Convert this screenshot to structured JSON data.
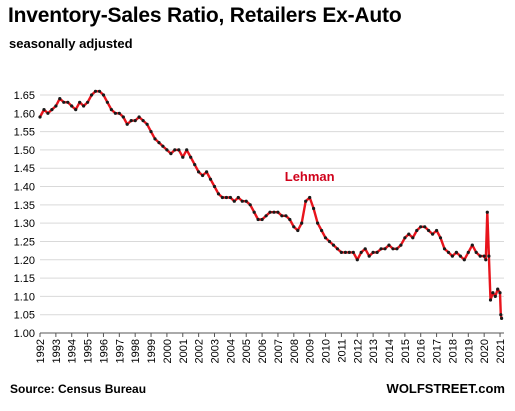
{
  "title": "Inventory-Sales  Ratio, Retailers Ex-Auto",
  "subtitle": "seasonally adjusted",
  "source": "Source: Census Bureau",
  "brand": "WOLFSTREET.com",
  "colors": {
    "line": "#e8141c",
    "marker": "#1a1a1a",
    "grid": "#d9d9d9",
    "annotation": "#d0021b"
  },
  "chart_data": {
    "type": "line",
    "title": "Inventory-Sales  Ratio, Retailers Ex-Auto",
    "subtitle": "seasonally adjusted",
    "xlabel": "",
    "ylabel": "",
    "xlim": [
      1992,
      2021.25
    ],
    "ylim": [
      1.0,
      1.68
    ],
    "grid": "horizontal",
    "y_ticks": [
      "1.00",
      "1.05",
      "1.10",
      "1.15",
      "1.20",
      "1.25",
      "1.30",
      "1.35",
      "1.40",
      "1.45",
      "1.50",
      "1.55",
      "1.60",
      "1.65"
    ],
    "x_ticks": [
      "1992",
      "1993",
      "1994",
      "1995",
      "1996",
      "1997",
      "1998",
      "1999",
      "2000",
      "2001",
      "2002",
      "2003",
      "2004",
      "2005",
      "2006",
      "2007",
      "2008",
      "2009",
      "2010",
      "2011",
      "2012",
      "2013",
      "2014",
      "2015",
      "2016",
      "2017",
      "2018",
      "2019",
      "2020",
      "2021"
    ],
    "annotations": [
      {
        "text": "Lehman",
        "x": 2009.0,
        "y": 1.415
      }
    ],
    "series": [
      {
        "name": "",
        "points": [
          [
            1992.0,
            1.59
          ],
          [
            1992.25,
            1.61
          ],
          [
            1992.5,
            1.6
          ],
          [
            1992.75,
            1.61
          ],
          [
            1993.0,
            1.62
          ],
          [
            1993.25,
            1.64
          ],
          [
            1993.5,
            1.63
          ],
          [
            1993.75,
            1.63
          ],
          [
            1994.0,
            1.62
          ],
          [
            1994.25,
            1.61
          ],
          [
            1994.5,
            1.63
          ],
          [
            1994.75,
            1.62
          ],
          [
            1995.0,
            1.63
          ],
          [
            1995.25,
            1.65
          ],
          [
            1995.5,
            1.66
          ],
          [
            1995.75,
            1.66
          ],
          [
            1996.0,
            1.65
          ],
          [
            1996.25,
            1.63
          ],
          [
            1996.5,
            1.61
          ],
          [
            1996.75,
            1.6
          ],
          [
            1997.0,
            1.6
          ],
          [
            1997.25,
            1.59
          ],
          [
            1997.5,
            1.57
          ],
          [
            1997.75,
            1.58
          ],
          [
            1998.0,
            1.58
          ],
          [
            1998.25,
            1.59
          ],
          [
            1998.5,
            1.58
          ],
          [
            1998.75,
            1.57
          ],
          [
            1999.0,
            1.55
          ],
          [
            1999.25,
            1.53
          ],
          [
            1999.5,
            1.52
          ],
          [
            1999.75,
            1.51
          ],
          [
            2000.0,
            1.5
          ],
          [
            2000.25,
            1.49
          ],
          [
            2000.5,
            1.5
          ],
          [
            2000.75,
            1.5
          ],
          [
            2001.0,
            1.48
          ],
          [
            2001.25,
            1.5
          ],
          [
            2001.5,
            1.48
          ],
          [
            2001.75,
            1.46
          ],
          [
            2002.0,
            1.44
          ],
          [
            2002.25,
            1.43
          ],
          [
            2002.5,
            1.44
          ],
          [
            2002.75,
            1.42
          ],
          [
            2003.0,
            1.4
          ],
          [
            2003.25,
            1.38
          ],
          [
            2003.5,
            1.37
          ],
          [
            2003.75,
            1.37
          ],
          [
            2004.0,
            1.37
          ],
          [
            2004.25,
            1.36
          ],
          [
            2004.5,
            1.37
          ],
          [
            2004.75,
            1.36
          ],
          [
            2005.0,
            1.36
          ],
          [
            2005.25,
            1.35
          ],
          [
            2005.5,
            1.33
          ],
          [
            2005.75,
            1.31
          ],
          [
            2006.0,
            1.31
          ],
          [
            2006.25,
            1.32
          ],
          [
            2006.5,
            1.33
          ],
          [
            2006.75,
            1.33
          ],
          [
            2007.0,
            1.33
          ],
          [
            2007.25,
            1.32
          ],
          [
            2007.5,
            1.32
          ],
          [
            2007.75,
            1.31
          ],
          [
            2008.0,
            1.29
          ],
          [
            2008.25,
            1.28
          ],
          [
            2008.5,
            1.3
          ],
          [
            2008.75,
            1.36
          ],
          [
            2009.0,
            1.37
          ],
          [
            2009.25,
            1.34
          ],
          [
            2009.5,
            1.3
          ],
          [
            2009.75,
            1.28
          ],
          [
            2010.0,
            1.26
          ],
          [
            2010.25,
            1.25
          ],
          [
            2010.5,
            1.24
          ],
          [
            2010.75,
            1.23
          ],
          [
            2011.0,
            1.22
          ],
          [
            2011.25,
            1.22
          ],
          [
            2011.5,
            1.22
          ],
          [
            2011.75,
            1.22
          ],
          [
            2012.0,
            1.2
          ],
          [
            2012.25,
            1.22
          ],
          [
            2012.5,
            1.23
          ],
          [
            2012.75,
            1.21
          ],
          [
            2013.0,
            1.22
          ],
          [
            2013.25,
            1.22
          ],
          [
            2013.5,
            1.23
          ],
          [
            2013.75,
            1.23
          ],
          [
            2014.0,
            1.24
          ],
          [
            2014.25,
            1.23
          ],
          [
            2014.5,
            1.23
          ],
          [
            2014.75,
            1.24
          ],
          [
            2015.0,
            1.26
          ],
          [
            2015.25,
            1.27
          ],
          [
            2015.5,
            1.26
          ],
          [
            2015.75,
            1.28
          ],
          [
            2016.0,
            1.29
          ],
          [
            2016.25,
            1.29
          ],
          [
            2016.5,
            1.28
          ],
          [
            2016.75,
            1.27
          ],
          [
            2017.0,
            1.28
          ],
          [
            2017.25,
            1.26
          ],
          [
            2017.5,
            1.23
          ],
          [
            2017.75,
            1.22
          ],
          [
            2018.0,
            1.21
          ],
          [
            2018.25,
            1.22
          ],
          [
            2018.5,
            1.21
          ],
          [
            2018.75,
            1.2
          ],
          [
            2019.0,
            1.22
          ],
          [
            2019.25,
            1.24
          ],
          [
            2019.5,
            1.22
          ],
          [
            2019.75,
            1.21
          ],
          [
            2020.0,
            1.21
          ],
          [
            2020.1,
            1.2
          ],
          [
            2020.2,
            1.33
          ],
          [
            2020.3,
            1.21
          ],
          [
            2020.4,
            1.09
          ],
          [
            2020.55,
            1.11
          ],
          [
            2020.7,
            1.1
          ],
          [
            2020.85,
            1.12
          ],
          [
            2021.0,
            1.11
          ],
          [
            2021.05,
            1.05
          ],
          [
            2021.1,
            1.04
          ]
        ]
      }
    ]
  }
}
